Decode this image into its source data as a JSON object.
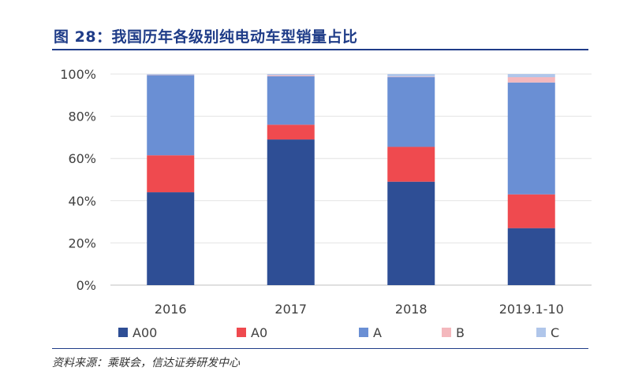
{
  "figure": {
    "title": "图 28：我国历年各级别纯电动车型销量占比",
    "source": "资料来源：乘联会，信达证券研发中心"
  },
  "chart_data": {
    "type": "bar",
    "stacked": true,
    "title": "",
    "xlabel": "",
    "ylabel": "",
    "categories": [
      "2016",
      "2017",
      "2018",
      "2019.1-10"
    ],
    "ylim": [
      0,
      100
    ],
    "yticks": [
      0,
      20,
      40,
      60,
      80,
      100
    ],
    "ytick_labels": [
      "0%",
      "20%",
      "40%",
      "60%",
      "80%",
      "100%"
    ],
    "series": [
      {
        "name": "A00",
        "color": "#2e4e95",
        "values": [
          44,
          69,
          49,
          27
        ]
      },
      {
        "name": "A0",
        "color": "#ef4a4f",
        "values": [
          17.5,
          7,
          16.5,
          16
        ]
      },
      {
        "name": "A",
        "color": "#6a8fd4",
        "values": [
          38,
          23,
          33,
          53
        ]
      },
      {
        "name": "B",
        "color": "#f4b8bd",
        "values": [
          0.2,
          0.5,
          0.2,
          2.5
        ]
      },
      {
        "name": "C",
        "color": "#b0c6ea",
        "values": [
          0.3,
          0.5,
          1.3,
          1.5
        ]
      }
    ],
    "legend": "bottom",
    "grid": true
  }
}
